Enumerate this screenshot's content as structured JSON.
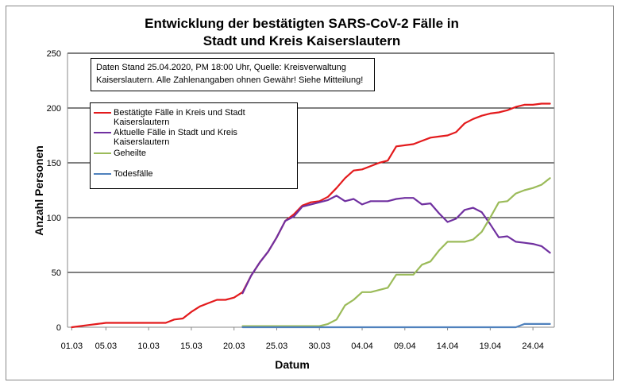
{
  "chart_data": {
    "type": "line",
    "title_line1": "Entwicklung der bestätigten SARS-CoV-2 Fälle in",
    "title_line2": "Stadt und Kreis Kaiserslautern",
    "xlabel": "Datum",
    "ylabel": "Anzahl Personen",
    "ylim": [
      0,
      250
    ],
    "yticks": [
      0,
      50,
      100,
      150,
      200,
      250
    ],
    "x_start": "01.03",
    "x_end": "26.04",
    "xtick_labels": [
      "01.03",
      "05.03",
      "10.03",
      "15.03",
      "20.03",
      "25.03",
      "30.03",
      "04.04",
      "09.04",
      "14.04",
      "19.04",
      "24.04"
    ],
    "xtick_index": [
      0,
      4,
      9,
      14,
      19,
      24,
      29,
      34,
      39,
      44,
      49,
      54
    ],
    "grid": "horizontal",
    "note": "Daten Stand 25.04.2020, PM 18:00 Uhr, Quelle: Kreisverwaltung Kaiserslautern. Alle Zahlenangaben ohnen Gewähr! Siehe Mitteilung!",
    "series": [
      {
        "name": "Bestätigte Fälle in Kreis und Stadt Kaiserslautern",
        "color": "#e31a1c",
        "start_index": 0,
        "values": [
          0,
          1,
          2,
          3,
          4,
          4,
          4,
          4,
          4,
          4,
          4,
          4,
          7,
          8,
          14,
          19,
          22,
          25,
          25,
          27,
          32,
          47,
          59,
          69,
          82,
          97,
          103,
          111,
          114,
          115,
          119,
          127,
          136,
          143,
          144,
          147,
          150,
          152,
          165,
          166,
          167,
          170,
          173,
          174,
          175,
          178,
          186,
          190,
          193,
          195,
          196,
          198,
          201,
          203,
          203,
          204,
          204
        ]
      },
      {
        "name": "Aktuelle Fälle in Stadt und Kreis Kaiserslautern",
        "color": "#7030a0",
        "start_index": 20,
        "values": [
          31,
          47,
          59,
          69,
          82,
          97,
          101,
          110,
          112,
          114,
          116,
          120,
          115,
          117,
          112,
          115,
          115,
          115,
          117,
          118,
          118,
          112,
          113,
          104,
          96,
          99,
          107,
          109,
          105,
          94,
          82,
          83,
          78,
          77,
          76,
          74,
          68
        ]
      },
      {
        "name": "Geheilte",
        "color": "#9bbb59",
        "start_index": 20,
        "values": [
          1,
          1,
          1,
          1,
          1,
          1,
          1,
          1,
          1,
          1,
          3,
          7,
          20,
          25,
          32,
          32,
          34,
          36,
          48,
          48,
          48,
          57,
          60,
          70,
          78,
          78,
          78,
          80,
          87,
          100,
          114,
          115,
          122,
          125,
          127,
          130,
          136
        ]
      },
      {
        "name": "Todesfälle",
        "color": "#4f81bd",
        "start_index": 20,
        "values": [
          0,
          0,
          0,
          0,
          0,
          0,
          0,
          0,
          0,
          0,
          0,
          0,
          0,
          0,
          0,
          0,
          0,
          0,
          0,
          0,
          0,
          0,
          0,
          0,
          0,
          0,
          0,
          0,
          0,
          0,
          0,
          0,
          0,
          3,
          3,
          3,
          3
        ]
      }
    ]
  }
}
